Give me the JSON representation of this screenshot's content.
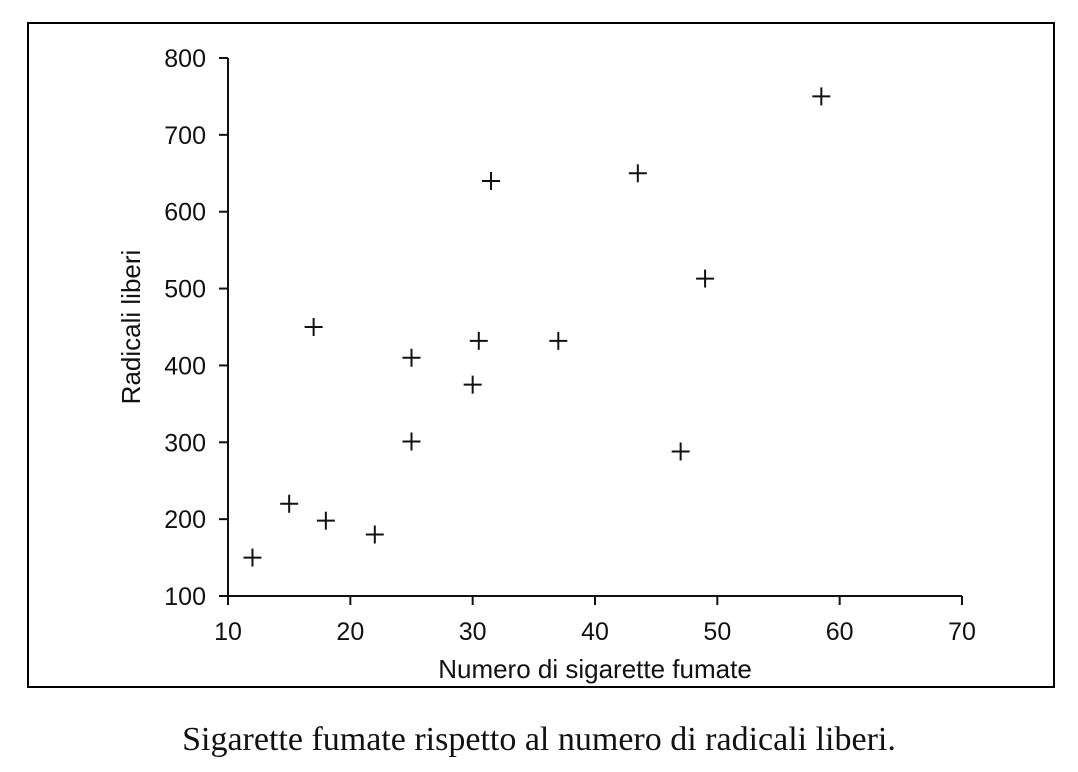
{
  "caption": "Sigarette fumate rispetto al numero di radicali liberi.",
  "chart_data": {
    "type": "scatter",
    "marker": "plus",
    "marker_color": "#111111",
    "xlabel": "Numero di sigarette fumate",
    "ylabel": "Radicali liberi",
    "xlim": [
      10,
      70
    ],
    "ylim": [
      100,
      800
    ],
    "xticks": [
      10,
      20,
      30,
      40,
      50,
      60,
      70
    ],
    "yticks": [
      100,
      200,
      300,
      400,
      500,
      600,
      700,
      800
    ],
    "grid": false,
    "points": [
      {
        "x": 12,
        "y": 150
      },
      {
        "x": 15,
        "y": 220
      },
      {
        "x": 17,
        "y": 450
      },
      {
        "x": 18,
        "y": 198
      },
      {
        "x": 22,
        "y": 180
      },
      {
        "x": 25,
        "y": 410
      },
      {
        "x": 25,
        "y": 301
      },
      {
        "x": 30,
        "y": 375
      },
      {
        "x": 30.5,
        "y": 432
      },
      {
        "x": 31.5,
        "y": 640
      },
      {
        "x": 37,
        "y": 432
      },
      {
        "x": 43.5,
        "y": 650
      },
      {
        "x": 47,
        "y": 288
      },
      {
        "x": 49,
        "y": 513
      },
      {
        "x": 58.5,
        "y": 750
      }
    ]
  }
}
